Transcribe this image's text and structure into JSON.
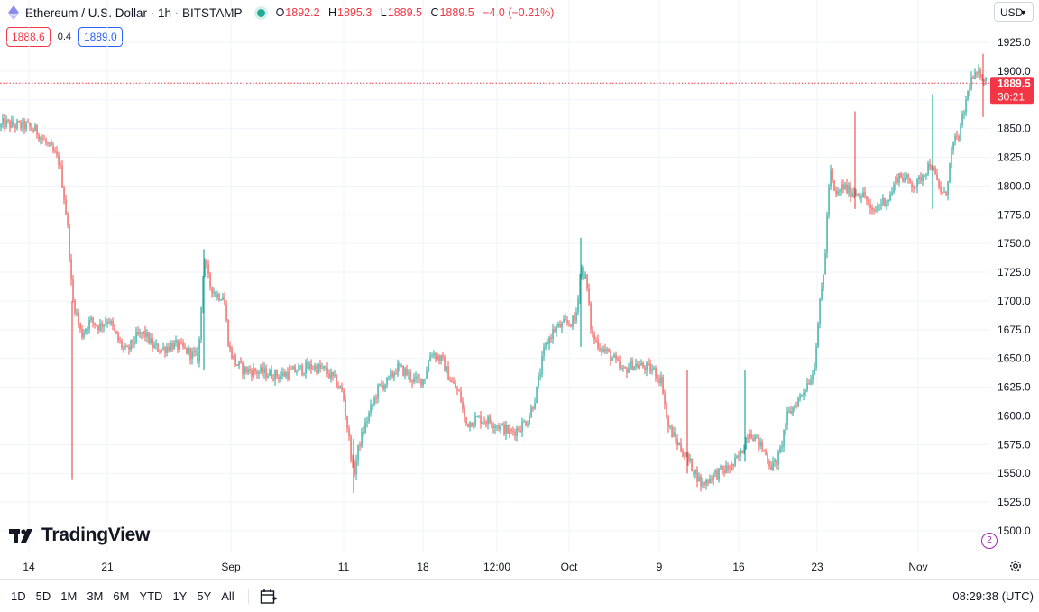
{
  "header": {
    "symbol_title": "Ethereum / U.S. Dollar · 1h · BITSTAMP",
    "ohlc": {
      "open_label": "O",
      "open": "1892.2",
      "high_label": "H",
      "high": "1895.3",
      "low_label": "L",
      "low": "1889.5",
      "close_label": "C",
      "close": "1889.5",
      "change": "−4.0 (−0.21%)"
    },
    "sell_price": "1888.6",
    "spread": "0.4",
    "buy_price": "1889.0",
    "currency": "USD"
  },
  "last_price_tag": {
    "price": "1889.5",
    "countdown": "30:21"
  },
  "branding": {
    "logo_text": "TradingView"
  },
  "bottom_bar": {
    "ranges": [
      "1D",
      "5D",
      "1M",
      "3M",
      "6M",
      "YTD",
      "1Y",
      "5Y",
      "All"
    ],
    "clock": "08:29:38 (UTC)"
  },
  "colors": {
    "up": "#26a69a",
    "down": "#ef5350",
    "grid": "#f0f3fa",
    "last_price": "#f23645"
  },
  "chart_data": {
    "type": "candlestick",
    "title": "Ethereum / U.S. Dollar · 1h · BITSTAMP",
    "y_ticks": [
      1500,
      1525,
      1550,
      1575,
      1600,
      1625,
      1650,
      1675,
      1700,
      1725,
      1750,
      1775,
      1800,
      1825,
      1850,
      1875,
      1900,
      1925
    ],
    "y_tick_labels": [
      "1500.0",
      "1525.0",
      "1550.0",
      "1575.0",
      "1600.0",
      "1625.0",
      "1650.0",
      "1675.0",
      "1700.0",
      "1725.0",
      "1750.0",
      "1775.0",
      "1800.0",
      "1825.0",
      "1850.0",
      "",
      "1900.0",
      "1925.0"
    ],
    "ylim": [
      1487,
      1935
    ],
    "x_tick_labels": [
      "14",
      "21",
      "Sep",
      "11",
      "18",
      "12:00",
      "Oct",
      "9",
      "16",
      "23",
      "Nov"
    ],
    "last_price": 1889.5,
    "grid": true,
    "price_path": [
      {
        "x": 0,
        "y": 1851
      },
      {
        "x": 4,
        "y": 1855
      },
      {
        "x": 14,
        "y": 1853
      },
      {
        "x": 30,
        "y": 1852
      },
      {
        "x": 40,
        "y": 1848
      },
      {
        "x": 50,
        "y": 1838
      },
      {
        "x": 60,
        "y": 1828
      },
      {
        "x": 66,
        "y": 1820
      },
      {
        "x": 72,
        "y": 1785
      },
      {
        "x": 76,
        "y": 1755
      },
      {
        "x": 80,
        "y": 1702
      },
      {
        "x": 84,
        "y": 1692
      },
      {
        "x": 90,
        "y": 1670
      },
      {
        "x": 100,
        "y": 1683
      },
      {
        "x": 110,
        "y": 1678
      },
      {
        "x": 120,
        "y": 1685
      },
      {
        "x": 130,
        "y": 1667
      },
      {
        "x": 140,
        "y": 1655
      },
      {
        "x": 150,
        "y": 1668
      },
      {
        "x": 160,
        "y": 1672
      },
      {
        "x": 170,
        "y": 1660
      },
      {
        "x": 180,
        "y": 1658
      },
      {
        "x": 190,
        "y": 1662
      },
      {
        "x": 200,
        "y": 1660
      },
      {
        "x": 210,
        "y": 1655
      },
      {
        "x": 220,
        "y": 1650
      },
      {
        "x": 226,
        "y": 1740
      },
      {
        "x": 232,
        "y": 1715
      },
      {
        "x": 240,
        "y": 1705
      },
      {
        "x": 248,
        "y": 1705
      },
      {
        "x": 254,
        "y": 1658
      },
      {
        "x": 262,
        "y": 1645
      },
      {
        "x": 270,
        "y": 1640
      },
      {
        "x": 290,
        "y": 1638
      },
      {
        "x": 310,
        "y": 1635
      },
      {
        "x": 330,
        "y": 1640
      },
      {
        "x": 345,
        "y": 1643
      },
      {
        "x": 360,
        "y": 1640
      },
      {
        "x": 372,
        "y": 1630
      },
      {
        "x": 380,
        "y": 1620
      },
      {
        "x": 386,
        "y": 1585
      },
      {
        "x": 392,
        "y": 1548
      },
      {
        "x": 398,
        "y": 1575
      },
      {
        "x": 406,
        "y": 1595
      },
      {
        "x": 420,
        "y": 1625
      },
      {
        "x": 430,
        "y": 1630
      },
      {
        "x": 440,
        "y": 1642
      },
      {
        "x": 450,
        "y": 1638
      },
      {
        "x": 460,
        "y": 1630
      },
      {
        "x": 470,
        "y": 1632
      },
      {
        "x": 478,
        "y": 1656
      },
      {
        "x": 490,
        "y": 1648
      },
      {
        "x": 500,
        "y": 1630
      },
      {
        "x": 510,
        "y": 1618
      },
      {
        "x": 516,
        "y": 1593
      },
      {
        "x": 530,
        "y": 1598
      },
      {
        "x": 545,
        "y": 1595
      },
      {
        "x": 556,
        "y": 1590
      },
      {
        "x": 566,
        "y": 1585
      },
      {
        "x": 576,
        "y": 1590
      },
      {
        "x": 586,
        "y": 1598
      },
      {
        "x": 594,
        "y": 1618
      },
      {
        "x": 604,
        "y": 1660
      },
      {
        "x": 614,
        "y": 1675
      },
      {
        "x": 626,
        "y": 1680
      },
      {
        "x": 638,
        "y": 1683
      },
      {
        "x": 644,
        "y": 1730
      },
      {
        "x": 650,
        "y": 1718
      },
      {
        "x": 656,
        "y": 1670
      },
      {
        "x": 666,
        "y": 1660
      },
      {
        "x": 680,
        "y": 1650
      },
      {
        "x": 690,
        "y": 1638
      },
      {
        "x": 700,
        "y": 1645
      },
      {
        "x": 712,
        "y": 1643
      },
      {
        "x": 724,
        "y": 1640
      },
      {
        "x": 734,
        "y": 1630
      },
      {
        "x": 740,
        "y": 1592
      },
      {
        "x": 750,
        "y": 1578
      },
      {
        "x": 760,
        "y": 1565
      },
      {
        "x": 770,
        "y": 1552
      },
      {
        "x": 778,
        "y": 1540
      },
      {
        "x": 790,
        "y": 1548
      },
      {
        "x": 800,
        "y": 1552
      },
      {
        "x": 812,
        "y": 1556
      },
      {
        "x": 822,
        "y": 1568
      },
      {
        "x": 830,
        "y": 1588
      },
      {
        "x": 840,
        "y": 1578
      },
      {
        "x": 848,
        "y": 1568
      },
      {
        "x": 856,
        "y": 1555
      },
      {
        "x": 864,
        "y": 1565
      },
      {
        "x": 872,
        "y": 1598
      },
      {
        "x": 880,
        "y": 1608
      },
      {
        "x": 888,
        "y": 1618
      },
      {
        "x": 896,
        "y": 1630
      },
      {
        "x": 902,
        "y": 1638
      },
      {
        "x": 908,
        "y": 1690
      },
      {
        "x": 914,
        "y": 1730
      },
      {
        "x": 920,
        "y": 1815
      },
      {
        "x": 926,
        "y": 1790
      },
      {
        "x": 934,
        "y": 1800
      },
      {
        "x": 942,
        "y": 1795
      },
      {
        "x": 950,
        "y": 1795
      },
      {
        "x": 960,
        "y": 1790
      },
      {
        "x": 966,
        "y": 1775
      },
      {
        "x": 976,
        "y": 1785
      },
      {
        "x": 986,
        "y": 1790
      },
      {
        "x": 996,
        "y": 1810
      },
      {
        "x": 1006,
        "y": 1805
      },
      {
        "x": 1016,
        "y": 1800
      },
      {
        "x": 1024,
        "y": 1812
      },
      {
        "x": 1032,
        "y": 1820
      },
      {
        "x": 1040,
        "y": 1800
      },
      {
        "x": 1048,
        "y": 1790
      },
      {
        "x": 1056,
        "y": 1835
      },
      {
        "x": 1064,
        "y": 1845
      },
      {
        "x": 1070,
        "y": 1870
      },
      {
        "x": 1076,
        "y": 1892
      },
      {
        "x": 1082,
        "y": 1895
      },
      {
        "x": 1088,
        "y": 1898
      },
      {
        "x": 1094,
        "y": 1890
      }
    ],
    "spike_wicks": [
      {
        "x": 80,
        "low": 1545,
        "high": 1700
      },
      {
        "x": 226,
        "low": 1640,
        "high": 1745
      },
      {
        "x": 392,
        "low": 1533,
        "high": 1580
      },
      {
        "x": 644,
        "low": 1660,
        "high": 1755
      },
      {
        "x": 762,
        "low": 1550,
        "high": 1640
      },
      {
        "x": 826,
        "low": 1560,
        "high": 1640
      },
      {
        "x": 948,
        "low": 1780,
        "high": 1865
      },
      {
        "x": 1034,
        "low": 1780,
        "high": 1880
      },
      {
        "x": 1090,
        "low": 1860,
        "high": 1915
      }
    ]
  }
}
